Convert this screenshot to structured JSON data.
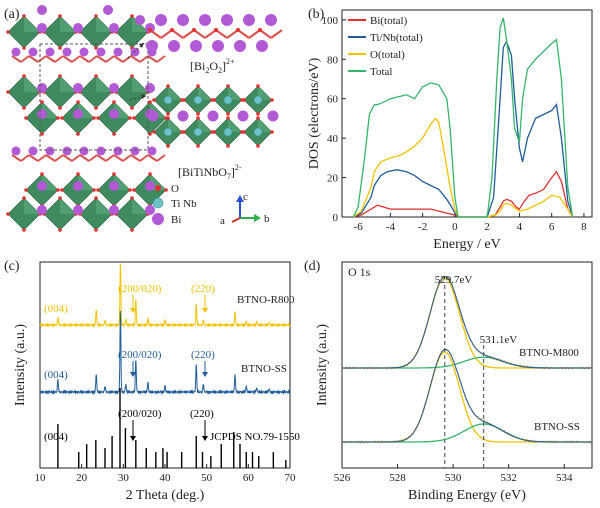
{
  "panels": {
    "a": {
      "label": "(a)",
      "layer_top": "[Bi",
      "layer_top_sub": "2",
      "layer_top_mid": "O",
      "layer_top_sub2": "2",
      "layer_top_end": "]",
      "layer_top_sup": "2+",
      "layer_bot": "[BiTiNbO",
      "layer_bot_sub": "7",
      "layer_bot_end": "]",
      "layer_bot_sup": "2-",
      "legend": [
        {
          "label": "O",
          "color": "#e03030"
        },
        {
          "label": "Ti Nb",
          "color": "#6ec3c8"
        },
        {
          "label": "Bi",
          "color": "#b25ad6"
        }
      ],
      "axes_labels": {
        "a": "a",
        "b": "b",
        "c": "c"
      },
      "colors": {
        "octahedra": "#3f8a5f",
        "bi": "#b25ad6",
        "o": "#e03030",
        "bond": "#d9534f"
      }
    },
    "b": {
      "label": "(b)"
    },
    "c": {
      "label": "(c)"
    },
    "d": {
      "label": "(d)"
    }
  },
  "chart_data": [
    {
      "panel": "b",
      "type": "line",
      "xlabel": "Energy / eV",
      "ylabel": "DOS (electrons/eV)",
      "xlim": [
        -7,
        8.5
      ],
      "ylim": [
        0,
        105
      ],
      "xticks": [
        -6,
        -4,
        -2,
        0,
        2,
        4,
        6,
        8
      ],
      "yticks": [
        0,
        20,
        40,
        60,
        80,
        100
      ],
      "legend_position": "top-left",
      "series": [
        {
          "name": "Bi(total)",
          "color": "#e03030",
          "x": [
            -6.3,
            -5.8,
            -5.2,
            -4.8,
            -4.4,
            -4,
            -3,
            -2,
            -1.5,
            -1,
            -0.5,
            0,
            0.2,
            2,
            2.5,
            2.8,
            3,
            3.2,
            3.5,
            3.8,
            4,
            4.3,
            4.6,
            5,
            5.5,
            6,
            6.3,
            6.6,
            7,
            7.3
          ],
          "y": [
            0,
            1,
            4,
            6,
            5,
            4,
            4,
            4,
            4,
            3,
            2,
            1,
            0,
            0,
            1,
            5,
            8,
            9,
            8,
            5,
            4,
            8,
            11,
            12,
            14,
            20,
            23,
            18,
            4,
            0
          ]
        },
        {
          "name": "Ti/Nb(total)",
          "color": "#1f5c99",
          "x": [
            -6.3,
            -5.8,
            -5.2,
            -5,
            -4.6,
            -4.2,
            -3.6,
            -3,
            -2.5,
            -2,
            -1.5,
            -1,
            -0.5,
            -0.2,
            0,
            0.2,
            2,
            2.4,
            2.8,
            3,
            3.2,
            3.5,
            3.7,
            4,
            4.2,
            4.5,
            5,
            5.5,
            6,
            6.3,
            6.6,
            7,
            7.3
          ],
          "y": [
            0,
            2,
            10,
            16,
            21,
            23,
            24,
            23,
            21,
            18,
            16,
            14,
            9,
            5,
            2,
            0,
            0,
            10,
            60,
            86,
            89,
            82,
            60,
            35,
            28,
            40,
            50,
            52,
            54,
            57,
            40,
            8,
            0
          ]
        },
        {
          "name": "O(total)",
          "color": "#f2c200",
          "x": [
            -6.3,
            -5.8,
            -5.2,
            -5,
            -4.6,
            -4,
            -3.5,
            -3,
            -2.5,
            -2,
            -1.5,
            -1.2,
            -1,
            -0.6,
            -0.3,
            0,
            0.2,
            2,
            2.5,
            2.8,
            3,
            3.2,
            3.5,
            3.8,
            4,
            4.5,
            5,
            5.5,
            6,
            6.5,
            7,
            7.3
          ],
          "y": [
            0,
            3,
            15,
            23,
            28,
            30,
            31,
            33,
            36,
            40,
            47,
            50,
            48,
            30,
            15,
            4,
            0,
            0,
            1,
            3,
            6,
            7,
            6,
            4,
            3,
            4,
            6,
            8,
            11,
            10,
            4,
            0
          ]
        },
        {
          "name": "Total",
          "color": "#35b56a",
          "x": [
            -6.3,
            -6,
            -5.6,
            -5.3,
            -5,
            -4.8,
            -4.5,
            -4,
            -3.5,
            -3,
            -2.5,
            -2,
            -1.5,
            -1,
            -0.5,
            -0.3,
            0,
            0.2,
            2,
            2.3,
            2.6,
            2.8,
            3,
            3.2,
            3.5,
            3.7,
            4,
            4.2,
            4.5,
            5,
            5.5,
            6,
            6.3,
            6.6,
            7,
            7.3
          ],
          "y": [
            0,
            5,
            30,
            52,
            57,
            57,
            58,
            60,
            61,
            62,
            60,
            66,
            68,
            67,
            60,
            45,
            10,
            0,
            0,
            20,
            70,
            96,
            101,
            90,
            70,
            45,
            38,
            60,
            75,
            80,
            84,
            88,
            90,
            70,
            15,
            0
          ]
        }
      ]
    },
    {
      "panel": "c",
      "type": "line",
      "xlabel": "2 Theta (deg.)",
      "ylabel": "Intensity (a.u.)",
      "xlim": [
        10,
        70
      ],
      "xticks": [
        10,
        20,
        30,
        40,
        50,
        60,
        70
      ],
      "series": [
        {
          "name": "BTNO-R800",
          "color": "#f2c200",
          "peaks": [
            [
              14.3,
              0.12
            ],
            [
              23.5,
              0.25
            ],
            [
              25.6,
              0.08
            ],
            [
              29.3,
              1.0
            ],
            [
              30.6,
              0.1
            ],
            [
              33.0,
              0.42
            ],
            [
              35.9,
              0.1
            ],
            [
              40.0,
              0.08
            ],
            [
              47.5,
              0.35
            ],
            [
              49.2,
              0.08
            ],
            [
              56.8,
              0.22
            ],
            [
              59.5,
              0.06
            ],
            [
              62,
              0.05
            ],
            [
              65,
              0.04
            ]
          ]
        },
        {
          "name": "BTNO-SS",
          "color": "#1f5c99",
          "peaks": [
            [
              14.3,
              0.15
            ],
            [
              23.5,
              0.22
            ],
            [
              25.6,
              0.07
            ],
            [
              29.3,
              1.0
            ],
            [
              30.6,
              0.1
            ],
            [
              33.0,
              0.4
            ],
            [
              35.9,
              0.12
            ],
            [
              40.0,
              0.08
            ],
            [
              47.5,
              0.34
            ],
            [
              49.2,
              0.1
            ],
            [
              56.8,
              0.22
            ],
            [
              59.5,
              0.07
            ],
            [
              62,
              0.05
            ],
            [
              65,
              0.04
            ]
          ]
        },
        {
          "name": "JCPDS NO.79-1550",
          "color": "#000000",
          "sticks": [
            [
              14.3,
              0.55
            ],
            [
              19.3,
              0.2
            ],
            [
              21.2,
              0.3
            ],
            [
              23.4,
              0.35
            ],
            [
              25.6,
              0.25
            ],
            [
              27.3,
              0.4
            ],
            [
              29.2,
              1.0
            ],
            [
              30.5,
              0.5
            ],
            [
              33.0,
              0.35
            ],
            [
              35.5,
              0.25
            ],
            [
              37.8,
              0.2
            ],
            [
              39.5,
              0.25
            ],
            [
              40.5,
              0.2
            ],
            [
              44.0,
              0.2
            ],
            [
              47.5,
              0.4
            ],
            [
              49.0,
              0.2
            ],
            [
              51.0,
              0.15
            ],
            [
              53.5,
              0.3
            ],
            [
              56.5,
              0.45
            ],
            [
              58.0,
              0.3
            ],
            [
              59.5,
              0.2
            ],
            [
              61.0,
              0.2
            ],
            [
              62.5,
              0.15
            ],
            [
              66.0,
              0.2
            ],
            [
              69.0,
              0.1
            ]
          ]
        }
      ],
      "annotations": [
        {
          "text": "(004)",
          "series": 0
        },
        {
          "text": "(200/020)",
          "series": 0
        },
        {
          "text": "(220)",
          "series": 0
        },
        {
          "text": "(004)",
          "series": 1
        },
        {
          "text": "(200/020)",
          "series": 1
        },
        {
          "text": "(220)",
          "series": 1
        },
        {
          "text": "(004)",
          "series": 2
        },
        {
          "text": "(200/020)",
          "series": 2
        },
        {
          "text": "(220)",
          "series": 2
        }
      ]
    },
    {
      "panel": "d",
      "type": "line",
      "title": "O 1s",
      "xlabel": "Binding Energy (eV)",
      "ylabel": "Intensity (a.u.)",
      "xlim": [
        526,
        535
      ],
      "xticks": [
        526,
        528,
        530,
        532,
        534
      ],
      "peak_labels": [
        "529.7eV",
        "531.1eV"
      ],
      "peak_positions": [
        529.7,
        531.1
      ],
      "series": [
        {
          "name": "BTNO-M800",
          "color": "#d48a2a",
          "components": [
            {
              "center": 529.7,
              "height": 1.0,
              "width": 0.75,
              "color": "#f2c200"
            },
            {
              "center": 531.1,
              "height": 0.12,
              "width": 1.0,
              "color": "#35b56a"
            }
          ]
        },
        {
          "name": "BTNO-SS",
          "color": "#d48a2a",
          "components": [
            {
              "center": 529.7,
              "height": 1.0,
              "width": 0.75,
              "color": "#f2c200"
            },
            {
              "center": 531.1,
              "height": 0.2,
              "width": 1.0,
              "color": "#35b56a"
            }
          ]
        }
      ]
    }
  ]
}
